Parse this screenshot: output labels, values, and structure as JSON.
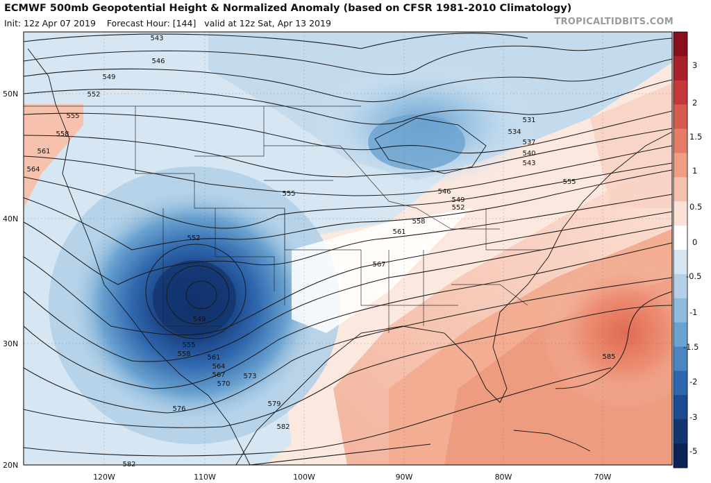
{
  "header": {
    "title": "ECMWF 500mb Geopotential Height & Normalized Anomaly (based on CFSR 1981-2010 Climatology)",
    "init": "Init: 12z Apr 07 2019",
    "forecast_hour": "Forecast Hour: [144]",
    "valid": "valid at 12z Sat, Apr 13 2019",
    "watermark": "TROPICALTIDBITS.COM"
  },
  "map": {
    "lat_labels": [
      "50N",
      "40N",
      "30N",
      "20N"
    ],
    "lon_labels": [
      "120W",
      "110W",
      "100W",
      "90W",
      "80W",
      "70W"
    ]
  },
  "contours": [
    {
      "value": "543"
    },
    {
      "value": "546"
    },
    {
      "value": "549"
    },
    {
      "value": "552"
    },
    {
      "value": "555"
    },
    {
      "value": "558"
    },
    {
      "value": "561"
    },
    {
      "value": "564"
    },
    {
      "value": "531"
    },
    {
      "value": "534"
    },
    {
      "value": "537"
    },
    {
      "value": "540"
    },
    {
      "value": "543"
    },
    {
      "value": "555"
    },
    {
      "value": "555"
    },
    {
      "value": "546"
    },
    {
      "value": "549"
    },
    {
      "value": "552"
    },
    {
      "value": "558"
    },
    {
      "value": "561"
    },
    {
      "value": "567"
    },
    {
      "value": "552"
    },
    {
      "value": "549"
    },
    {
      "value": "555"
    },
    {
      "value": "558"
    },
    {
      "value": "561"
    },
    {
      "value": "564"
    },
    {
      "value": "567"
    },
    {
      "value": "570"
    },
    {
      "value": "573"
    },
    {
      "value": "576"
    },
    {
      "value": "579"
    },
    {
      "value": "582"
    },
    {
      "value": "585"
    },
    {
      "value": "582"
    }
  ],
  "colorbar": {
    "labels": [
      "3",
      "2",
      "1.5",
      "1",
      "0.5",
      "0",
      "-0.5",
      "-1",
      "-1.5",
      "-2",
      "-3",
      "-5"
    ],
    "colors": [
      "#8a0f1c",
      "#a8202a",
      "#c4383a",
      "#d65a4e",
      "#e57d66",
      "#ef9e86",
      "#f6c2ae",
      "#fbe1d6",
      "#ffffff",
      "#d6e6f2",
      "#b3d0e8",
      "#8ebbdd",
      "#6aa2d0",
      "#4b86c1",
      "#2f67ae",
      "#1c4b91",
      "#133671",
      "#0c2455"
    ]
  },
  "colors": {
    "ocean": "#ffffff",
    "warm": "#eea185",
    "cold": "#2f65ab",
    "contour": "#1a1a1a"
  }
}
